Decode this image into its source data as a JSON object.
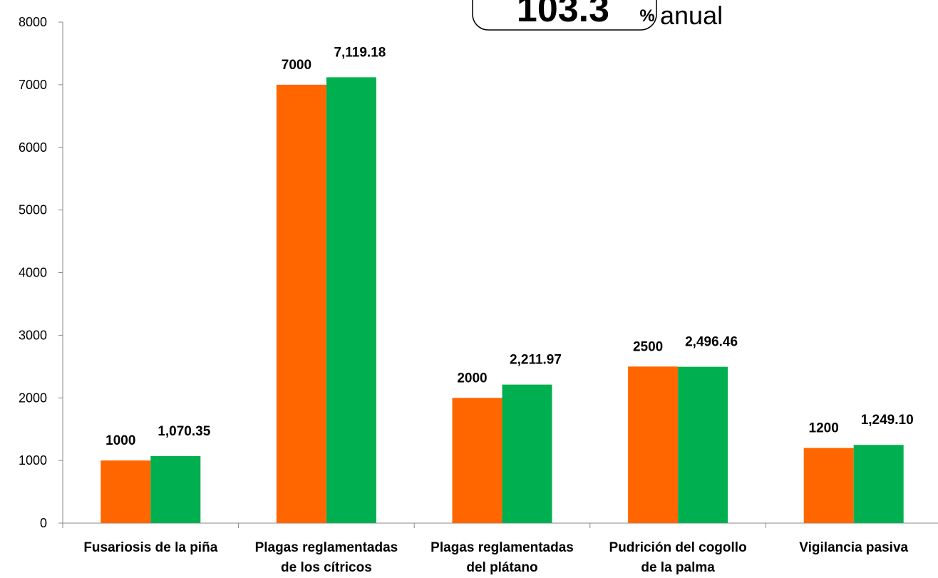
{
  "chart_data": {
    "type": "bar",
    "annotation": {
      "value": "103.3",
      "unit": "%",
      "text": "anual"
    },
    "categories": [
      [
        "Fusariosis de la piña"
      ],
      [
        "Plagas reglamentadas",
        "de los cítricos"
      ],
      [
        "Plagas reglamentadas",
        "del plátano"
      ],
      [
        "Pudrición del cogollo",
        "de la palma"
      ],
      [
        "Vigilancia pasiva"
      ]
    ],
    "series": [
      {
        "color": "#ff6600",
        "values": [
          1000,
          7000,
          2000,
          2500,
          1200
        ]
      },
      {
        "color": "#00b050",
        "values": [
          1070.35,
          7119.18,
          2211.97,
          2496.46,
          1249.1
        ],
        "value_labels": [
          "1,070.35",
          "7,119.18",
          "2,211.97",
          "2,496.46",
          "1,249.10"
        ]
      }
    ],
    "ylim": [
      0,
      8000
    ],
    "yticks": [
      0,
      1000,
      2000,
      3000,
      4000,
      5000,
      6000,
      7000,
      8000
    ],
    "grid": false
  }
}
